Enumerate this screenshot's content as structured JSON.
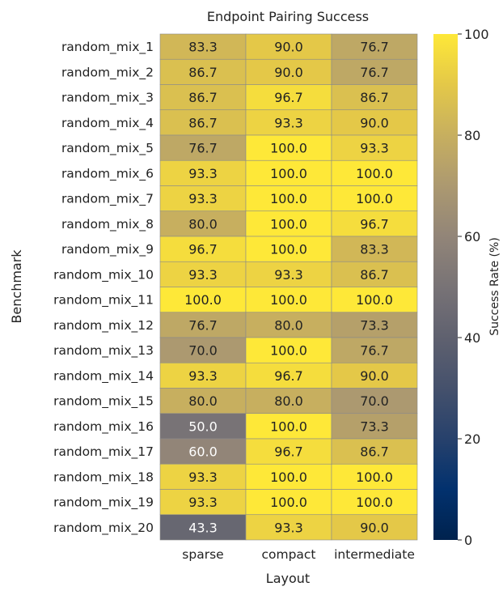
{
  "chart_data": {
    "type": "heatmap",
    "title": "Endpoint Pairing Success",
    "xlabel": "Layout",
    "ylabel": "Benchmark",
    "columns": [
      "sparse",
      "compact",
      "intermediate"
    ],
    "rows": [
      "random_mix_1",
      "random_mix_2",
      "random_mix_3",
      "random_mix_4",
      "random_mix_5",
      "random_mix_6",
      "random_mix_7",
      "random_mix_8",
      "random_mix_9",
      "random_mix_10",
      "random_mix_11",
      "random_mix_12",
      "random_mix_13",
      "random_mix_14",
      "random_mix_15",
      "random_mix_16",
      "random_mix_17",
      "random_mix_18",
      "random_mix_19",
      "random_mix_20"
    ],
    "values": [
      [
        83.3,
        90.0,
        76.7
      ],
      [
        86.7,
        90.0,
        76.7
      ],
      [
        86.7,
        96.7,
        86.7
      ],
      [
        86.7,
        93.3,
        90.0
      ],
      [
        76.7,
        100.0,
        93.3
      ],
      [
        93.3,
        100.0,
        100.0
      ],
      [
        93.3,
        100.0,
        100.0
      ],
      [
        80.0,
        100.0,
        96.7
      ],
      [
        96.7,
        100.0,
        83.3
      ],
      [
        93.3,
        93.3,
        86.7
      ],
      [
        100.0,
        100.0,
        100.0
      ],
      [
        76.7,
        80.0,
        73.3
      ],
      [
        70.0,
        100.0,
        76.7
      ],
      [
        93.3,
        96.7,
        90.0
      ],
      [
        80.0,
        80.0,
        70.0
      ],
      [
        50.0,
        100.0,
        73.3
      ],
      [
        60.0,
        96.7,
        86.7
      ],
      [
        93.3,
        100.0,
        100.0
      ],
      [
        93.3,
        100.0,
        100.0
      ],
      [
        43.3,
        93.3,
        90.0
      ]
    ],
    "value_labels": [
      [
        "83.3",
        "90.0",
        "76.7"
      ],
      [
        "86.7",
        "90.0",
        "76.7"
      ],
      [
        "86.7",
        "96.7",
        "86.7"
      ],
      [
        "86.7",
        "93.3",
        "90.0"
      ],
      [
        "76.7",
        "100.0",
        "93.3"
      ],
      [
        "93.3",
        "100.0",
        "100.0"
      ],
      [
        "93.3",
        "100.0",
        "100.0"
      ],
      [
        "80.0",
        "100.0",
        "96.7"
      ],
      [
        "96.7",
        "100.0",
        "83.3"
      ],
      [
        "93.3",
        "93.3",
        "86.7"
      ],
      [
        "100.0",
        "100.0",
        "100.0"
      ],
      [
        "76.7",
        "80.0",
        "73.3"
      ],
      [
        "70.0",
        "100.0",
        "76.7"
      ],
      [
        "93.3",
        "96.7",
        "90.0"
      ],
      [
        "80.0",
        "80.0",
        "70.0"
      ],
      [
        "50.0",
        "100.0",
        "73.3"
      ],
      [
        "60.0",
        "96.7",
        "86.7"
      ],
      [
        "93.3",
        "100.0",
        "100.0"
      ],
      [
        "93.3",
        "100.0",
        "100.0"
      ],
      [
        "43.3",
        "93.3",
        "90.0"
      ]
    ],
    "colorscale": "cividis",
    "vmin": 0,
    "vmax": 100,
    "colorbar": {
      "label": "Success Rate (%)",
      "ticks": [
        "0",
        "20",
        "40",
        "60",
        "80",
        "100"
      ],
      "tick_values": [
        0,
        20,
        40,
        60,
        80,
        100
      ]
    },
    "colors": {
      "cell_border": "#8a8a8a",
      "text_dark": "#222222",
      "text_light": "#ffffff"
    }
  }
}
